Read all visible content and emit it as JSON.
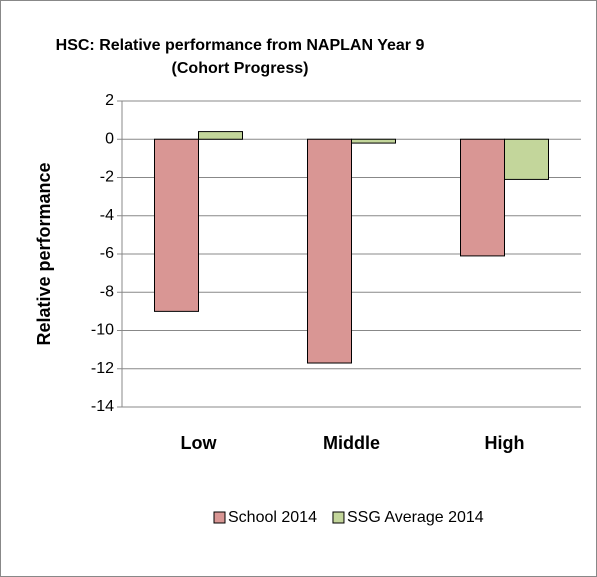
{
  "chart_data": {
    "type": "bar",
    "title": "HSC: Relative performance from NAPLAN Year 9 (Cohort Progress)",
    "y_axis_label": "Relative performance",
    "categories": [
      "Low",
      "Middle",
      "High"
    ],
    "series": [
      {
        "name": "School 2014",
        "color": "#d99694",
        "values": [
          -9,
          -11.7,
          -6.1
        ]
      },
      {
        "name": "SSG Average 2014",
        "color": "#c3d69b",
        "values": [
          0.4,
          -0.2,
          -2.1
        ]
      }
    ],
    "ylim": [
      -14,
      2
    ],
    "yticks": [
      -14,
      -12,
      -10,
      -8,
      -6,
      -4,
      -2,
      0,
      2
    ],
    "grid": true,
    "legend": "bottom"
  }
}
